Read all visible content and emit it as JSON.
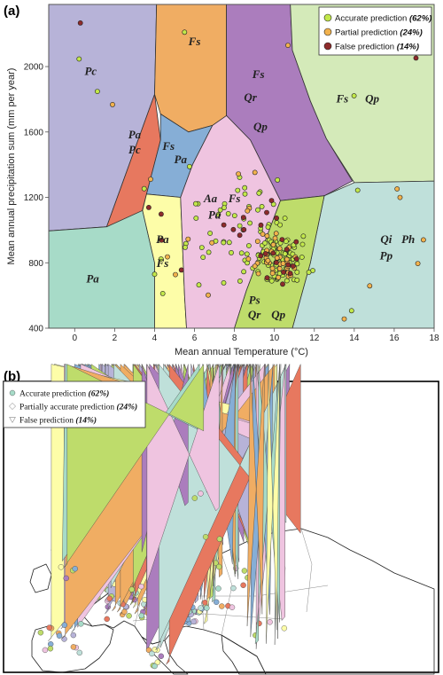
{
  "panel_a_label": "(a)",
  "panel_b_label": "(b)",
  "chart_data": [
    {
      "type": "scatter",
      "xlabel": "Mean annual Temperature (°C)",
      "ylabel": "Mean annual precipitation sum (mm per year)",
      "xlim": [
        -1.3,
        18
      ],
      "ylim": [
        400,
        2380
      ],
      "xticks": [
        0,
        2,
        4,
        6,
        8,
        10,
        12,
        14,
        16,
        18
      ],
      "yticks": [
        400,
        800,
        1200,
        1600,
        2000
      ],
      "legend_position": "top-right",
      "legend": [
        {
          "label": "Accurate prediction",
          "pct": "(62%)",
          "color": "#c2e84a"
        },
        {
          "label": "Partial prediction",
          "pct": "(24%)",
          "color": "#f2b24d"
        },
        {
          "label": "False prediction",
          "pct": "(14%)",
          "color": "#8e2b2b"
        }
      ],
      "regions": [
        {
          "color": "#b7b3d8",
          "labels": [
            {
              "text": "Pc",
              "x": 0.8,
              "y": 1950
            }
          ]
        },
        {
          "color": "#e7785f",
          "labels": [
            {
              "text": "Pa",
              "x": 3.0,
              "y": 1560
            },
            {
              "text": "Pc",
              "x": 3.0,
              "y": 1470
            }
          ]
        },
        {
          "color": "#f0ad63",
          "labels": [
            {
              "text": "Fs",
              "x": 6.0,
              "y": 2130
            }
          ]
        },
        {
          "color": "#86aed6",
          "labels": [
            {
              "text": "Fs",
              "x": 4.7,
              "y": 1490
            },
            {
              "text": "Pa",
              "x": 5.3,
              "y": 1410
            }
          ]
        },
        {
          "color": "#ab7dbd",
          "labels": [
            {
              "text": "Fs",
              "x": 9.2,
              "y": 1930
            },
            {
              "text": "Qr",
              "x": 8.8,
              "y": 1790
            },
            {
              "text": "Qp",
              "x": 9.3,
              "y": 1610
            }
          ]
        },
        {
          "color": "#d4eab9",
          "labels": [
            {
              "text": "Fs",
              "x": 13.4,
              "y": 1780
            },
            {
              "text": "Qp",
              "x": 14.9,
              "y": 1780
            }
          ]
        },
        {
          "color": "#efc4e0",
          "labels": [
            {
              "text": "Aa",
              "x": 6.8,
              "y": 1170
            },
            {
              "text": "Fs",
              "x": 8.0,
              "y": 1170
            },
            {
              "text": "Pa",
              "x": 7.0,
              "y": 1070
            }
          ]
        },
        {
          "color": "#fdfda8",
          "labels": [
            {
              "text": "Pa",
              "x": 4.4,
              "y": 920
            },
            {
              "text": "Fs",
              "x": 4.4,
              "y": 775
            }
          ]
        },
        {
          "color": "#a7dbc8",
          "labels": [
            {
              "text": "Pa",
              "x": 0.9,
              "y": 680
            }
          ]
        },
        {
          "color": "#bedc6b",
          "labels": [
            {
              "text": "Ps",
              "x": 9.0,
              "y": 550
            },
            {
              "text": "Qr",
              "x": 9.0,
              "y": 460
            },
            {
              "text": "Qp",
              "x": 10.2,
              "y": 460
            }
          ]
        },
        {
          "color": "#bfe0da",
          "labels": [
            {
              "text": "Qi",
              "x": 15.6,
              "y": 920
            },
            {
              "text": "Ph",
              "x": 16.7,
              "y": 920
            },
            {
              "text": "Pp",
              "x": 15.6,
              "y": 820
            }
          ]
        }
      ]
    },
    {
      "type": "map",
      "legend": [
        {
          "shape": "circle",
          "label": "Accurate prediction",
          "pct": "(62%)"
        },
        {
          "shape": "diamond",
          "label": "Partially accurate prediction",
          "pct": "(24%)"
        },
        {
          "shape": "triangle",
          "label": "False prediction",
          "pct": "(14%)"
        }
      ],
      "marker_colors": [
        "#a7dbc8",
        "#efc4e0",
        "#bedc6b",
        "#ab7dbd",
        "#86aed6",
        "#f0ad63",
        "#fdfda8",
        "#b7b3d8",
        "#e7785f",
        "#bfe0da"
      ]
    }
  ]
}
